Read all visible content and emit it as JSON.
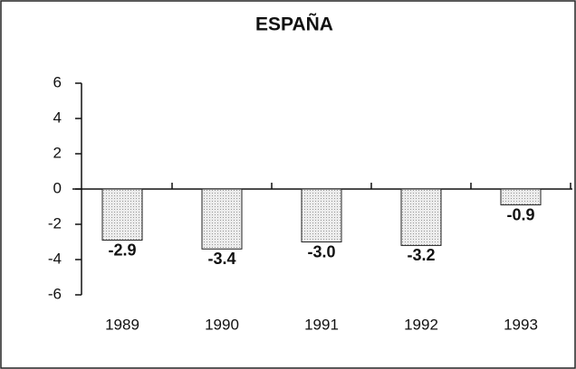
{
  "chart_data": {
    "type": "bar",
    "title": "ESPAÑA",
    "categories": [
      "1989",
      "1990",
      "1991",
      "1992",
      "1993"
    ],
    "values": [
      -2.9,
      -3.4,
      -3.0,
      -3.2,
      -0.9
    ],
    "value_labels": [
      "-2.9",
      "-3.4",
      "-3.0",
      "-3.2",
      "-0.9"
    ],
    "color": "#d8d8d8",
    "ylim": [
      -6,
      6
    ],
    "yticks": [
      6,
      4,
      2,
      0,
      -2,
      -4,
      -6
    ],
    "grid": false
  }
}
